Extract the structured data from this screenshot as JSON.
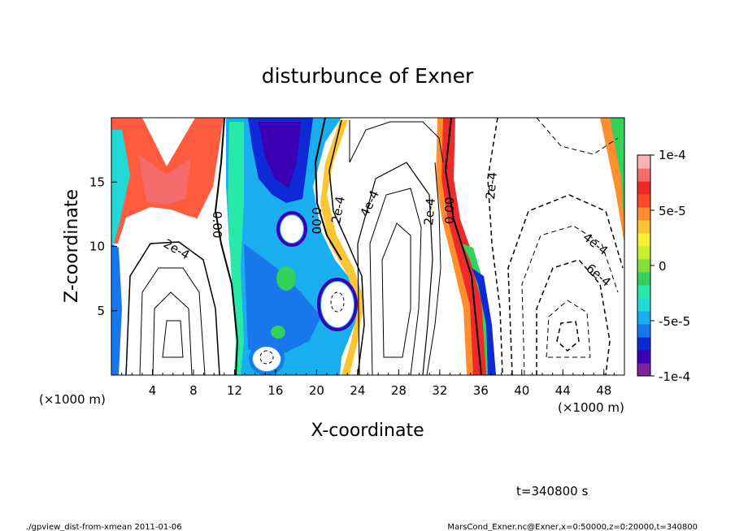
{
  "chart_data": {
    "type": "heatmap",
    "title": "disturbunce of Exner",
    "xlabel": "X-coordinate",
    "ylabel": "Z-coordinate",
    "x_unit_label": "(×1000 m)",
    "z_unit_label": "(×1000 m)",
    "xlim": [
      0,
      50
    ],
    "zlim": [
      0,
      20
    ],
    "x_ticks": [
      "4",
      "8",
      "12",
      "16",
      "20",
      "24",
      "28",
      "32",
      "36",
      "40",
      "44",
      "48"
    ],
    "z_ticks": [
      "5",
      "10",
      "15"
    ],
    "colorbar": {
      "range": [
        -0.0001,
        0.0001
      ],
      "labels": [
        "1e-4",
        "5e-5",
        "0",
        "-5e-5",
        "-1e-4"
      ],
      "colors": [
        "#7e1fa0",
        "#3b00b6",
        "#0d2ad6",
        "#1877ea",
        "#18aef0",
        "#21d9d6",
        "#28e9a7",
        "#33d05a",
        "#80e03a",
        "#c6ee2f",
        "#f6ef34",
        "#fcc534",
        "#ff8e2e",
        "#ff4a2a",
        "#ee2a2a",
        "#f46b6b",
        "#fbb2b2"
      ]
    },
    "contour_labels": [
      "0.00",
      "2e-4",
      "0.00",
      "2e-4",
      "4e-4",
      "2e-4",
      "0.00",
      "2e-4",
      "4e-4",
      "6e-4"
    ],
    "time_label": "t=340800 s",
    "footer_left": "./gpview_dist-from-xmean  2011-01-06",
    "footer_right": "MarsCond_Exner.nc@Exner,x=0:50000,z=0:20000,t=340800"
  }
}
